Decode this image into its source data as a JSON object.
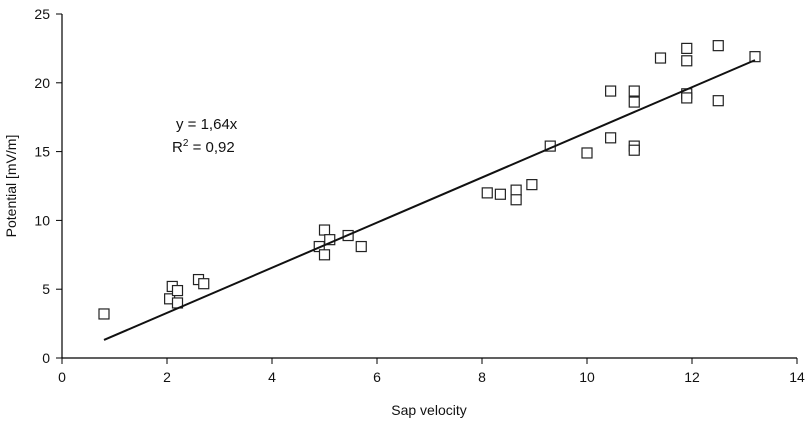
{
  "chart_data": {
    "type": "scatter",
    "title": "",
    "xlabel": "Sap velocity",
    "ylabel": "Potential [mV/m]",
    "xlim": [
      0,
      14
    ],
    "ylim": [
      0,
      25
    ],
    "xticks": [
      0,
      2,
      4,
      6,
      8,
      10,
      12,
      14
    ],
    "yticks": [
      0,
      5,
      10,
      15,
      20,
      25
    ],
    "grid": false,
    "legend": "none",
    "marker": "open-square",
    "series": [
      {
        "points": [
          [
            0.8,
            3.2
          ],
          [
            2.05,
            4.3
          ],
          [
            2.1,
            5.2
          ],
          [
            2.2,
            4.9
          ],
          [
            2.2,
            4.0
          ],
          [
            2.6,
            5.7
          ],
          [
            2.7,
            5.4
          ],
          [
            4.9,
            8.1
          ],
          [
            5.0,
            9.3
          ],
          [
            5.0,
            7.5
          ],
          [
            5.1,
            8.6
          ],
          [
            5.45,
            8.9
          ],
          [
            5.7,
            8.1
          ],
          [
            8.1,
            12.0
          ],
          [
            8.35,
            11.9
          ],
          [
            8.65,
            12.2
          ],
          [
            8.65,
            11.5
          ],
          [
            8.95,
            12.6
          ],
          [
            9.3,
            15.4
          ],
          [
            10.0,
            14.9
          ],
          [
            10.45,
            19.4
          ],
          [
            10.45,
            16.0
          ],
          [
            10.9,
            19.4
          ],
          [
            10.9,
            18.6
          ],
          [
            10.9,
            15.4
          ],
          [
            10.9,
            15.1
          ],
          [
            11.4,
            21.8
          ],
          [
            11.9,
            22.5
          ],
          [
            11.9,
            21.6
          ],
          [
            11.9,
            19.2
          ],
          [
            11.9,
            18.9
          ],
          [
            12.5,
            22.7
          ],
          [
            12.5,
            18.7
          ],
          [
            13.2,
            21.9
          ]
        ]
      }
    ],
    "trendline": {
      "slope": 1.64,
      "intercept": 0,
      "x_range": [
        0.8,
        13.2
      ],
      "equation": "y = 1,64x",
      "r2_prefix": "R",
      "r2_sup": "2",
      "r2_value": " = 0,92"
    }
  }
}
